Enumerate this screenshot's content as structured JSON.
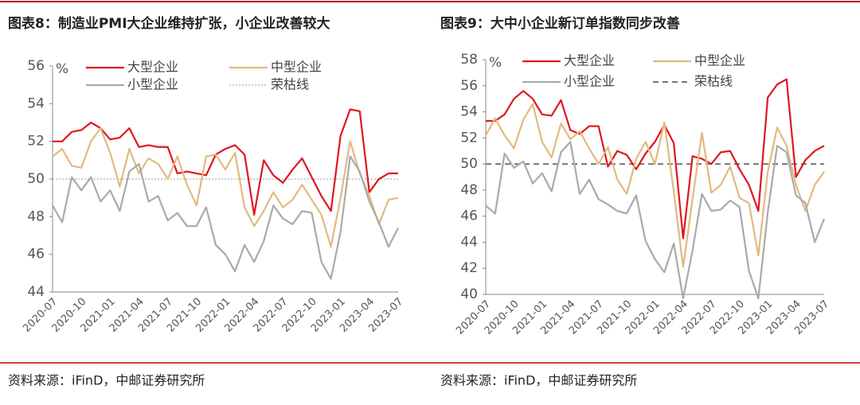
{
  "chart_data": [
    {
      "type": "line",
      "title": "图表8：制造业PMI大企业维持扩张，小企业改善较大",
      "source": "资料来源：iFinD，中邮证券研究所",
      "y_label": "%",
      "categories": [
        "2020-07",
        null,
        null,
        "2020-10",
        null,
        null,
        "2021-01",
        null,
        null,
        "2021-04",
        null,
        null,
        "2021-07",
        null,
        null,
        "2021-10",
        null,
        null,
        "2022-01",
        null,
        null,
        "2022-04",
        null,
        null,
        "2022-07",
        null,
        null,
        "2022-10",
        null,
        null,
        "2023-01",
        null,
        null,
        "2023-04",
        null,
        null,
        "2023-07"
      ],
      "ylim": [
        44,
        56
      ],
      "yticks": [
        44,
        46,
        48,
        50,
        52,
        54,
        56
      ],
      "series": [
        {
          "name": "大型企业",
          "color": "#e0161e",
          "values": [
            52.0,
            52.0,
            52.5,
            52.6,
            53.0,
            52.7,
            52.1,
            52.2,
            52.7,
            51.7,
            51.8,
            51.7,
            51.7,
            50.3,
            50.4,
            50.3,
            50.2,
            51.3,
            51.6,
            51.8,
            51.3,
            48.1,
            51.0,
            50.2,
            49.8,
            50.5,
            51.1,
            50.1,
            49.1,
            48.3,
            52.3,
            53.7,
            53.6,
            49.3,
            50.0,
            50.3,
            50.3
          ]
        },
        {
          "name": "中型企业",
          "color": "#e3b97f",
          "values": [
            51.2,
            51.6,
            50.7,
            50.6,
            52.0,
            52.7,
            51.4,
            49.6,
            51.6,
            50.3,
            51.1,
            50.8,
            50.0,
            51.2,
            49.7,
            48.6,
            51.2,
            51.3,
            50.5,
            51.4,
            48.5,
            47.5,
            48.3,
            49.3,
            48.5,
            48.9,
            49.7,
            48.9,
            48.1,
            46.4,
            49.0,
            52.0,
            50.3,
            49.1,
            47.6,
            48.9,
            49.0
          ]
        },
        {
          "name": "小型企业",
          "color": "#aaaaaa",
          "values": [
            48.6,
            47.7,
            50.1,
            49.4,
            50.1,
            48.8,
            49.4,
            48.3,
            50.4,
            50.8,
            48.8,
            49.1,
            47.8,
            48.2,
            47.5,
            47.5,
            48.5,
            46.5,
            46.0,
            45.1,
            46.5,
            45.6,
            46.7,
            48.6,
            47.9,
            47.6,
            48.3,
            48.2,
            45.6,
            44.7,
            47.2,
            51.2,
            50.4,
            48.8,
            47.7,
            46.4,
            47.4
          ]
        }
      ],
      "reference": {
        "name": "荣枯线",
        "value": 50,
        "color": "#999999",
        "dash": "dotted"
      }
    },
    {
      "type": "line",
      "title": "图表9：大中小企业新订单指数同步改善",
      "source": "资料来源：iFinD，中邮证券研究所",
      "y_label": "%",
      "categories": [
        "2020-07",
        null,
        null,
        "2020-10",
        null,
        null,
        "2021-01",
        null,
        null,
        "2021-04",
        null,
        null,
        "2021-07",
        null,
        null,
        "2021-10",
        null,
        null,
        "2022-01",
        null,
        null,
        "2022-04",
        null,
        null,
        "2022-07",
        null,
        null,
        "2022-10",
        null,
        null,
        "2023-01",
        null,
        null,
        "2023-04",
        null,
        null,
        "2023-07"
      ],
      "ylim": [
        40,
        58
      ],
      "yticks": [
        40,
        42,
        44,
        46,
        48,
        50,
        52,
        54,
        56,
        58
      ],
      "series": [
        {
          "name": "大型企业",
          "color": "#e0161e",
          "values": [
            53.3,
            53.3,
            53.8,
            55.0,
            55.6,
            55.0,
            53.8,
            53.7,
            54.9,
            52.6,
            52.3,
            52.9,
            52.9,
            49.8,
            51.0,
            50.7,
            49.6,
            50.8,
            51.7,
            53.0,
            51.6,
            44.3,
            50.6,
            50.4,
            50.0,
            50.9,
            51.0,
            49.6,
            48.4,
            46.4,
            55.1,
            56.1,
            56.5,
            49.0,
            50.3,
            51.0,
            51.4
          ]
        },
        {
          "name": "中型企业",
          "color": "#e3b97f",
          "values": [
            52.2,
            53.5,
            52.2,
            51.2,
            53.4,
            54.6,
            51.7,
            50.5,
            53.1,
            51.9,
            52.5,
            51.2,
            50.0,
            51.3,
            48.8,
            47.7,
            50.4,
            51.7,
            50.0,
            53.2,
            47.9,
            42.1,
            47.3,
            52.4,
            47.8,
            48.4,
            49.8,
            47.4,
            47.0,
            43.0,
            49.4,
            52.8,
            51.4,
            48.4,
            46.4,
            48.4,
            49.4
          ]
        },
        {
          "name": "小型企业",
          "color": "#aaaaaa",
          "values": [
            46.8,
            46.2,
            50.8,
            49.7,
            50.2,
            48.5,
            49.3,
            47.9,
            50.9,
            51.7,
            47.7,
            48.8,
            47.3,
            46.9,
            46.4,
            46.2,
            47.6,
            44.1,
            42.7,
            41.7,
            43.9,
            39.7,
            43.4,
            47.7,
            46.4,
            46.5,
            47.2,
            46.7,
            41.8,
            39.7,
            46.3,
            51.4,
            50.9,
            47.6,
            47.0,
            44.0,
            45.8
          ]
        }
      ],
      "reference": {
        "name": "荣枯线",
        "value": 50,
        "color": "#777777",
        "dash": "dashed"
      }
    }
  ]
}
